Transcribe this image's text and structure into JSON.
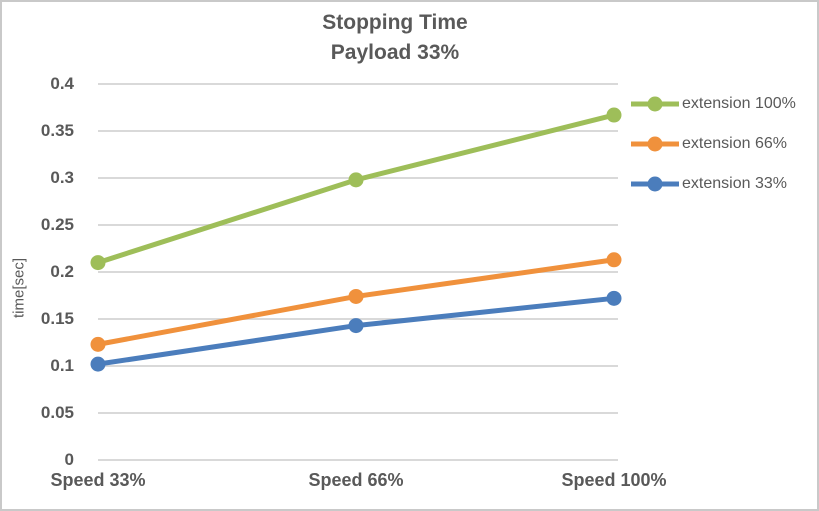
{
  "chart_data": {
    "type": "line",
    "title": "Stopping Time",
    "subtitle": "Payload 33%",
    "ylabel": "time[sec]",
    "xlabel": "",
    "categories": [
      "Speed 33%",
      "Speed 66%",
      "Speed 100%"
    ],
    "series": [
      {
        "name": "extension 100%",
        "color": "#9ebe59",
        "values": [
          0.21,
          0.298,
          0.367
        ]
      },
      {
        "name": "extension 66%",
        "color": "#f0913c",
        "values": [
          0.123,
          0.174,
          0.213
        ]
      },
      {
        "name": "extension 33%",
        "color": "#4b7dbc",
        "values": [
          0.102,
          0.143,
          0.172
        ]
      }
    ],
    "ylim": [
      0,
      0.4
    ],
    "ytick_step": 0.05,
    "ytick_labels": [
      "0",
      "0.05",
      "0.1",
      "0.15",
      "0.2",
      "0.25",
      "0.3",
      "0.35",
      "0.4"
    ],
    "grid": true,
    "grid_color": "#d9d9d9",
    "text_color": "#595959",
    "legend_position": "right",
    "marker": "circle",
    "line_width": 5,
    "marker_radius": 7.5
  }
}
